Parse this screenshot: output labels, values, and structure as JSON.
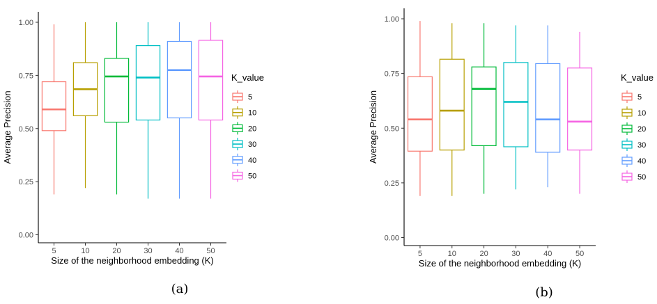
{
  "chart_data": [
    {
      "type": "box",
      "caption": "(a)",
      "xlabel": "Size of the neighborhood embedding (K)",
      "ylabel": "Average Precision",
      "categories": [
        "5",
        "10",
        "20",
        "30",
        "40",
        "50"
      ],
      "ylim": [
        0,
        1
      ],
      "yticks": [
        "0.00",
        "0.25",
        "0.50",
        "0.75",
        "1.00"
      ],
      "grid": false,
      "legend": {
        "title": "K_value",
        "placement": "right",
        "entries": [
          "5",
          "10",
          "20",
          "30",
          "40",
          "50"
        ]
      },
      "series": [
        {
          "category": "5",
          "min": 0.19,
          "q1": 0.49,
          "median": 0.59,
          "q3": 0.72,
          "max": 0.99
        },
        {
          "category": "10",
          "min": 0.22,
          "q1": 0.56,
          "median": 0.685,
          "q3": 0.81,
          "max": 1.0
        },
        {
          "category": "20",
          "min": 0.19,
          "q1": 0.53,
          "median": 0.745,
          "q3": 0.83,
          "max": 1.0
        },
        {
          "category": "30",
          "min": 0.17,
          "q1": 0.54,
          "median": 0.74,
          "q3": 0.89,
          "max": 1.0
        },
        {
          "category": "40",
          "min": 0.17,
          "q1": 0.55,
          "median": 0.775,
          "q3": 0.91,
          "max": 1.0
        },
        {
          "category": "50",
          "min": 0.17,
          "q1": 0.54,
          "median": 0.745,
          "q3": 0.915,
          "max": 1.0
        }
      ]
    },
    {
      "type": "box",
      "caption": "(b)",
      "xlabel": "Size of the neighborhood embedding (K)",
      "ylabel": "Average Precision",
      "categories": [
        "5",
        "10",
        "20",
        "30",
        "40",
        "50"
      ],
      "ylim": [
        0,
        1
      ],
      "yticks": [
        "0.00",
        "0.25",
        "0.50",
        "0.75",
        "1.00"
      ],
      "grid": false,
      "legend": {
        "title": "K_value",
        "placement": "right",
        "entries": [
          "5",
          "10",
          "20",
          "30",
          "40",
          "50"
        ]
      },
      "series": [
        {
          "category": "5",
          "min": 0.19,
          "q1": 0.395,
          "median": 0.54,
          "q3": 0.735,
          "max": 0.99
        },
        {
          "category": "10",
          "min": 0.19,
          "q1": 0.4,
          "median": 0.58,
          "q3": 0.815,
          "max": 0.98
        },
        {
          "category": "20",
          "min": 0.2,
          "q1": 0.42,
          "median": 0.68,
          "q3": 0.78,
          "max": 0.98
        },
        {
          "category": "30",
          "min": 0.22,
          "q1": 0.415,
          "median": 0.62,
          "q3": 0.8,
          "max": 0.97
        },
        {
          "category": "40",
          "min": 0.23,
          "q1": 0.39,
          "median": 0.54,
          "q3": 0.795,
          "max": 0.97
        },
        {
          "category": "50",
          "min": 0.2,
          "q1": 0.4,
          "median": 0.53,
          "q3": 0.775,
          "max": 0.94
        }
      ]
    }
  ],
  "colors": [
    "#F8766D",
    "#B79F00",
    "#00BA38",
    "#00BFC4",
    "#619CFF",
    "#F564E3"
  ]
}
